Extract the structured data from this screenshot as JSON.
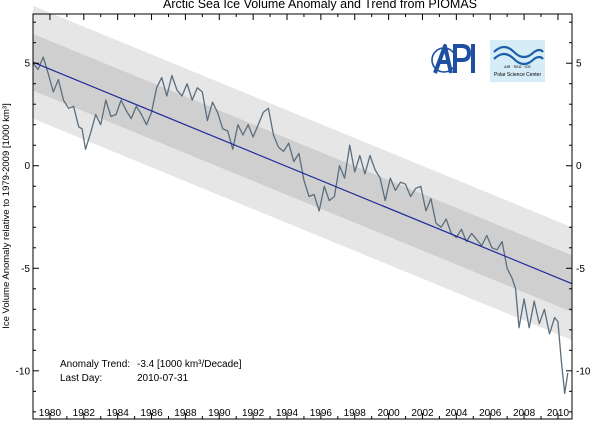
{
  "chart_data": {
    "type": "line",
    "title": "Arctic Sea Ice Volume Anomaly and Trend from PIOMAS",
    "ylabel": "Ice Volume Anomaly relative to 1979-2009 [1000 km³]",
    "xlabel": "",
    "xlim": [
      1979,
      2010.83
    ],
    "ylim": [
      -12.35,
      7.4
    ],
    "x_ticks": [
      "1980",
      "1982",
      "1984",
      "1986",
      "1988",
      "1990",
      "1992",
      "1994",
      "1996",
      "1998",
      "2000",
      "2002",
      "2004",
      "2006",
      "2008",
      "2010"
    ],
    "y_ticks": [
      "5",
      "0",
      "-5",
      "-10"
    ],
    "grid": false,
    "series": [
      {
        "role": "anomaly",
        "color": "#5b6e7d",
        "x": [
          1979.0,
          1979.3,
          1979.6,
          1979.9,
          1980.2,
          1980.5,
          1980.8,
          1981.1,
          1981.4,
          1981.7,
          1981.9,
          1982.1,
          1982.4,
          1982.7,
          1983.0,
          1983.3,
          1983.6,
          1983.9,
          1984.2,
          1984.5,
          1984.8,
          1985.1,
          1985.4,
          1985.7,
          1986.0,
          1986.3,
          1986.6,
          1986.9,
          1987.2,
          1987.5,
          1987.8,
          1988.1,
          1988.4,
          1988.7,
          1989.0,
          1989.3,
          1989.6,
          1989.9,
          1990.2,
          1990.5,
          1990.8,
          1991.1,
          1991.4,
          1991.7,
          1992.0,
          1992.3,
          1992.6,
          1992.9,
          1993.2,
          1993.5,
          1993.8,
          1994.1,
          1994.4,
          1994.7,
          1995.0,
          1995.3,
          1995.6,
          1995.9,
          1996.2,
          1996.5,
          1996.8,
          1997.1,
          1997.4,
          1997.7,
          1998.0,
          1998.3,
          1998.6,
          1998.9,
          1999.2,
          1999.5,
          1999.8,
          2000.1,
          2000.4,
          2000.7,
          2001.0,
          2001.3,
          2001.6,
          2001.9,
          2002.2,
          2002.5,
          2002.8,
          2003.1,
          2003.4,
          2003.7,
          2004.0,
          2004.3,
          2004.6,
          2004.9,
          2005.2,
          2005.5,
          2005.8,
          2006.1,
          2006.4,
          2006.7,
          2007.0,
          2007.3,
          2007.5,
          2007.7,
          2008.0,
          2008.3,
          2008.6,
          2008.9,
          2009.2,
          2009.5,
          2009.8,
          2010.0,
          2010.2,
          2010.4,
          2010.58
        ],
        "y": [
          5.0,
          4.7,
          5.3,
          4.5,
          3.6,
          4.2,
          3.2,
          2.8,
          2.9,
          1.9,
          1.8,
          0.8,
          1.6,
          2.5,
          2.0,
          3.2,
          2.4,
          2.5,
          3.2,
          2.7,
          2.3,
          2.9,
          2.5,
          2.0,
          2.6,
          3.8,
          4.3,
          3.4,
          4.4,
          3.7,
          3.4,
          4.0,
          3.2,
          3.8,
          3.6,
          2.2,
          3.1,
          2.6,
          1.8,
          1.7,
          0.8,
          2.0,
          1.5,
          2.0,
          1.4,
          2.0,
          2.6,
          2.8,
          1.5,
          0.9,
          0.7,
          1.1,
          0.2,
          0.6,
          -0.7,
          -1.5,
          -1.4,
          -2.2,
          -1.0,
          -1.7,
          -1.5,
          0.0,
          -0.6,
          1.0,
          -0.3,
          0.5,
          -0.4,
          0.5,
          -0.2,
          -0.6,
          -1.7,
          -0.6,
          -1.2,
          -0.8,
          -0.9,
          -1.5,
          -1.1,
          -1.0,
          -2.2,
          -1.6,
          -2.8,
          -3.0,
          -2.6,
          -3.3,
          -3.5,
          -3.1,
          -3.7,
          -3.3,
          -3.6,
          -3.9,
          -3.4,
          -4.0,
          -4.1,
          -3.7,
          -5.0,
          -5.5,
          -6.0,
          -7.9,
          -6.5,
          -7.9,
          -6.6,
          -7.7,
          -7.0,
          -8.2,
          -7.4,
          -7.6,
          -9.5,
          -11.1,
          -10.1
        ]
      },
      {
        "role": "trend",
        "label": "Anomaly Trend: -3.4 [1000 km³/Decade]",
        "color": "#1f2a9a",
        "x": [
          1979.0,
          2010.83
        ],
        "y": [
          5.05,
          -5.75
        ]
      }
    ],
    "bands": [
      {
        "sigma": 2,
        "offset": 2.75,
        "color": "#e6e6e6"
      },
      {
        "sigma": 1,
        "offset": 1.38,
        "color": "#cfcfcf"
      }
    ],
    "annotations": [
      {
        "label": "Anomaly Trend:",
        "value": "-3.4 [1000 km³/Decade]"
      },
      {
        "label": "Last Day:",
        "value": "2010-07-31"
      }
    ],
    "logos": [
      "APL",
      "AIR · SEA · ICE",
      "Polar Science Center"
    ]
  }
}
